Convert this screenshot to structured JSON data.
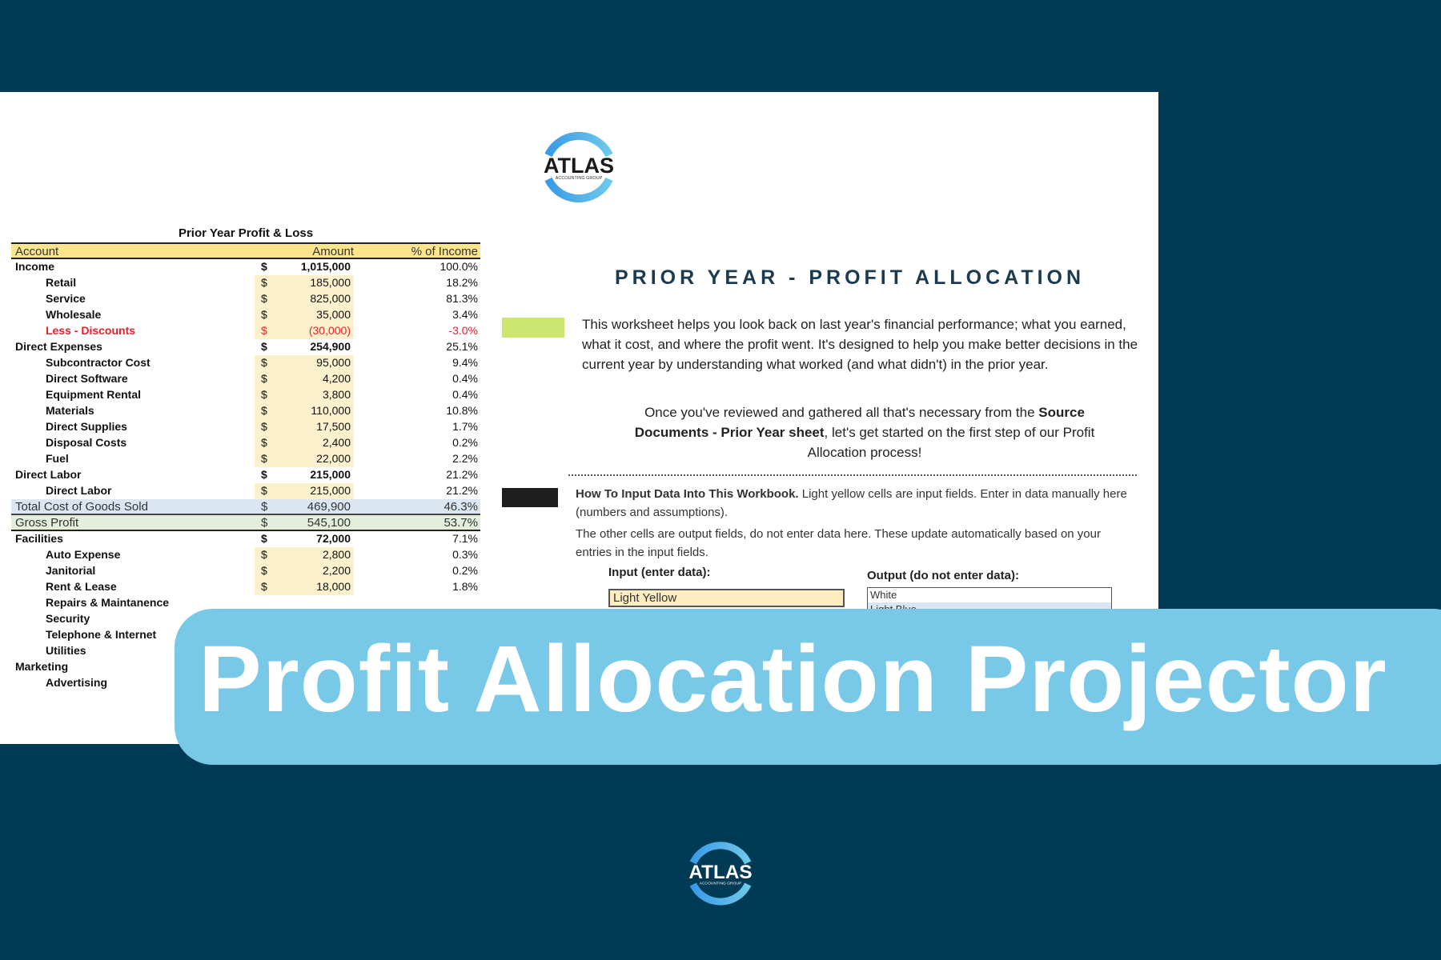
{
  "brand": {
    "name": "ATLAS",
    "tagline": "ACCOUNTING GROUP",
    "colors": {
      "background": "#013a55",
      "banner": "#78c9e8",
      "ring": "#3fa3e6"
    }
  },
  "pl": {
    "title": "Prior Year Profit & Loss",
    "headers": [
      "Account",
      "Amount",
      "% of Income"
    ],
    "rows": [
      {
        "type": "cat",
        "account": "Income",
        "dollar": "$",
        "amount": "1,015,000",
        "pct": "100.0%"
      },
      {
        "type": "sub",
        "account": "Retail",
        "dollar": "$",
        "amount": "185,000",
        "pct": "18.2%"
      },
      {
        "type": "sub",
        "account": "Service",
        "dollar": "$",
        "amount": "825,000",
        "pct": "81.3%"
      },
      {
        "type": "sub",
        "account": "Wholesale",
        "dollar": "$",
        "amount": "35,000",
        "pct": "3.4%"
      },
      {
        "type": "sub red",
        "account": "Less - Discounts",
        "dollar": "$",
        "amount": "(30,000)",
        "pct": "-3.0%"
      },
      {
        "type": "cat",
        "account": "Direct Expenses",
        "dollar": "$",
        "amount": "254,900",
        "pct": "25.1%"
      },
      {
        "type": "sub",
        "account": "Subcontractor Cost",
        "dollar": "$",
        "amount": "95,000",
        "pct": "9.4%"
      },
      {
        "type": "sub",
        "account": "Direct Software",
        "dollar": "$",
        "amount": "4,200",
        "pct": "0.4%"
      },
      {
        "type": "sub",
        "account": "Equipment Rental",
        "dollar": "$",
        "amount": "3,800",
        "pct": "0.4%"
      },
      {
        "type": "sub",
        "account": "Materials",
        "dollar": "$",
        "amount": "110,000",
        "pct": "10.8%"
      },
      {
        "type": "sub",
        "account": "Direct Supplies",
        "dollar": "$",
        "amount": "17,500",
        "pct": "1.7%"
      },
      {
        "type": "sub",
        "account": "Disposal Costs",
        "dollar": "$",
        "amount": "2,400",
        "pct": "0.2%"
      },
      {
        "type": "sub",
        "account": "Fuel",
        "dollar": "$",
        "amount": "22,000",
        "pct": "2.2%"
      },
      {
        "type": "cat",
        "account": "Direct Labor",
        "dollar": "$",
        "amount": "215,000",
        "pct": "21.2%"
      },
      {
        "type": "sub",
        "account": "Direct Labor",
        "dollar": "$",
        "amount": "215,000",
        "pct": "21.2%"
      },
      {
        "type": "total",
        "account": "Total Cost of Goods Sold",
        "dollar": "$",
        "amount": "469,900",
        "pct": "46.3%"
      },
      {
        "type": "gross",
        "account": "Gross Profit",
        "dollar": "$",
        "amount": "545,100",
        "pct": "53.7%"
      },
      {
        "type": "cat",
        "account": "Facilities",
        "dollar": "$",
        "amount": "72,000",
        "pct": "7.1%"
      },
      {
        "type": "sub",
        "account": "Auto Expense",
        "dollar": "$",
        "amount": "2,800",
        "pct": "0.3%"
      },
      {
        "type": "sub",
        "account": "Janitorial",
        "dollar": "$",
        "amount": "2,200",
        "pct": "0.2%"
      },
      {
        "type": "sub",
        "account": "Rent & Lease",
        "dollar": "$",
        "amount": "18,000",
        "pct": "1.8%"
      },
      {
        "type": "sub",
        "account": "Repairs & Maintanence",
        "dollar": "",
        "amount": "",
        "pct": ""
      },
      {
        "type": "sub",
        "account": "Security",
        "dollar": "",
        "amount": "",
        "pct": ""
      },
      {
        "type": "sub",
        "account": "Telephone & Internet",
        "dollar": "",
        "amount": "",
        "pct": ""
      },
      {
        "type": "sub",
        "account": "Utilities",
        "dollar": "",
        "amount": "",
        "pct": ""
      },
      {
        "type": "cat",
        "account": "Marketing",
        "dollar": "",
        "amount": "",
        "pct": ""
      },
      {
        "type": "sub",
        "account": "Advertising",
        "dollar": "",
        "amount": "",
        "pct": ""
      }
    ]
  },
  "info": {
    "heading": "PRIOR YEAR - PROFIT ALLOCATION",
    "intro": "This worksheet helps you look back on last year's financial performance; what you earned, what it cost, and where the profit went. It's designed to help you make better decisions in the current year by understanding what worked (and what didn't) in the prior year.",
    "next_pre": "Once you've reviewed and gathered all that's necessary from the ",
    "next_bold": "Source Documents - Prior Year sheet",
    "next_post": ", let's get started on the first step of our Profit Allocation process!",
    "howto_bold": "How To Input Data Into This Workbook.",
    "howto_text": " Light yellow cells are input fields. Enter in data manually here (numbers and assumptions).",
    "howto_text2": "The other cells are output fields, do not enter data here. These update automatically based on your entries in the input fields.",
    "input_label": "Input (enter data):",
    "input_value": "Light Yellow",
    "output_label": "Output (do not enter data):",
    "output_values": [
      "White",
      "Light Blue"
    ]
  },
  "banner": {
    "title": "Profit Allocation Projector"
  }
}
